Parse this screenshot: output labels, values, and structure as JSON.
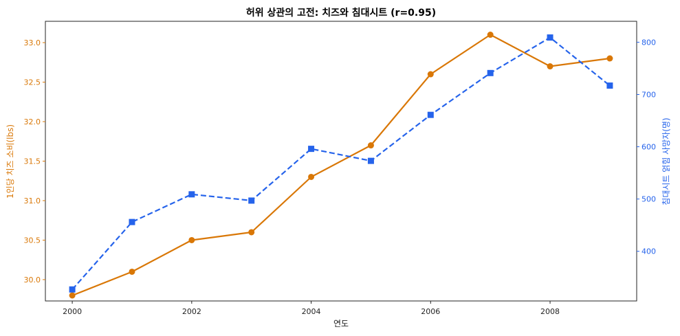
{
  "chart_data": {
    "type": "line",
    "title": "허위 상관의 고전: 치즈와 침대시트 (r=0.95)",
    "xlabel": "연도",
    "ylabel_left": "1인당 치즈 소비(lbs)",
    "ylabel_right": "침대시트 얽힘 사망자(명)",
    "x": [
      2000,
      2001,
      2002,
      2003,
      2004,
      2005,
      2006,
      2007,
      2008,
      2009
    ],
    "x_ticks": [
      "2000",
      "2002",
      "2004",
      "2006",
      "2008"
    ],
    "y_left_ticks": [
      "30.0",
      "30.5",
      "31.0",
      "31.5",
      "32.0",
      "32.5",
      "33.0"
    ],
    "y_right_ticks": [
      "400",
      "500",
      "600",
      "700",
      "800"
    ],
    "xlim": [
      1999.55,
      2009.45
    ],
    "ylim_left": [
      29.73,
      33.27
    ],
    "ylim_right": [
      305,
      840
    ],
    "grid": false,
    "legend": "none",
    "series": [
      {
        "axis": "left",
        "color": "#d97706",
        "style": "solid",
        "marker": "circle",
        "values": [
          29.8,
          30.1,
          30.5,
          30.6,
          31.3,
          31.7,
          32.6,
          33.1,
          32.7,
          32.8
        ]
      },
      {
        "axis": "right",
        "color": "#2563eb",
        "style": "dashed",
        "marker": "square",
        "values": [
          327,
          456,
          509,
          497,
          596,
          573,
          661,
          741,
          809,
          717
        ]
      }
    ]
  }
}
